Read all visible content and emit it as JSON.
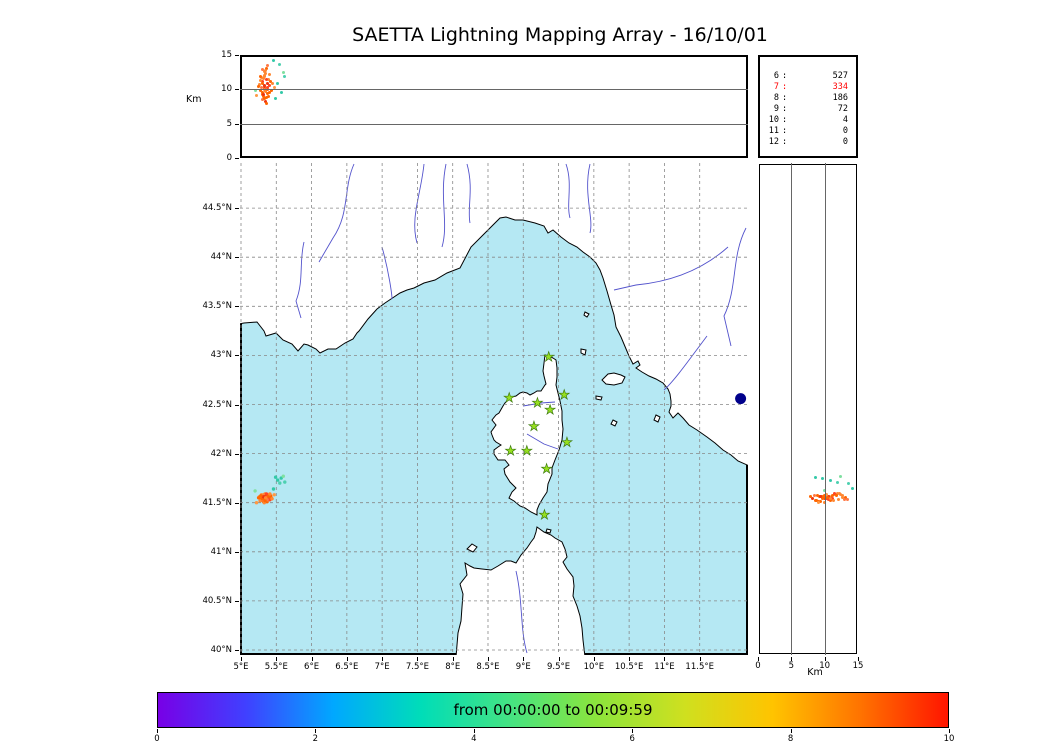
{
  "title": "SAETTA Lightning Mapping Array - 16/10/01",
  "colors": {
    "sea": "#b5e8f3",
    "land": "#ffffff",
    "coast": "#000000",
    "river": "#5353cc",
    "grid": "#888888",
    "station_fill": "#97e01f",
    "station_edge": "#3f7d10",
    "special": "#00008b",
    "highlight": "#ff0000"
  },
  "alt_lon_panel": {
    "axis_label": "Km",
    "yticks": [
      {
        "v": 15,
        "label": "15"
      },
      {
        "v": 10,
        "label": "10"
      },
      {
        "v": 5,
        "label": "5"
      },
      {
        "v": 0,
        "label": "0"
      }
    ],
    "grid": [
      5,
      10
    ]
  },
  "stats_panel": {
    "rows": [
      {
        "n": "6",
        "count": "527",
        "highlight": false
      },
      {
        "n": "7",
        "count": "334",
        "highlight": true
      },
      {
        "n": "8",
        "count": "186",
        "highlight": false
      },
      {
        "n": "9",
        "count": "72",
        "highlight": false
      },
      {
        "n": "10",
        "count": "4",
        "highlight": false
      },
      {
        "n": "11",
        "count": "0",
        "highlight": false
      },
      {
        "n": "12",
        "count": "0",
        "highlight": false
      }
    ]
  },
  "map_panel": {
    "lat_ticks": [
      {
        "v": 44.5,
        "label": "44.5°N"
      },
      {
        "v": 44,
        "label": "44°N"
      },
      {
        "v": 43.5,
        "label": "43.5°N"
      },
      {
        "v": 43,
        "label": "43°N"
      },
      {
        "v": 42.5,
        "label": "42.5°N"
      },
      {
        "v": 42,
        "label": "42°N"
      },
      {
        "v": 41.5,
        "label": "41.5°N"
      },
      {
        "v": 41,
        "label": "41°N"
      },
      {
        "v": 40.5,
        "label": "40.5°N"
      },
      {
        "v": 40,
        "label": "40°N"
      }
    ],
    "lon_ticks": [
      {
        "v": 5,
        "label": "5°E"
      },
      {
        "v": 5.5,
        "label": "5.5°E"
      },
      {
        "v": 6,
        "label": "6°E"
      },
      {
        "v": 6.5,
        "label": "6.5°E"
      },
      {
        "v": 7,
        "label": "7°E"
      },
      {
        "v": 7.5,
        "label": "7.5°E"
      },
      {
        "v": 8,
        "label": "8°E"
      },
      {
        "v": 8.5,
        "label": "8.5°E"
      },
      {
        "v": 9,
        "label": "9°E"
      },
      {
        "v": 9.5,
        "label": "9.5°E"
      },
      {
        "v": 10,
        "label": "10°E"
      },
      {
        "v": 10.5,
        "label": "10.5°E"
      },
      {
        "v": 11,
        "label": "11°E"
      },
      {
        "v": 11.5,
        "label": "11.5°E"
      }
    ]
  },
  "alt_lat_panel": {
    "axis_label": "Km",
    "xticks": [
      {
        "v": 0,
        "label": "0"
      },
      {
        "v": 5,
        "label": "5"
      },
      {
        "v": 10,
        "label": "10"
      },
      {
        "v": 15,
        "label": "15"
      }
    ],
    "grid": [
      5,
      10
    ]
  },
  "colorbar": {
    "label": "from 00:00:00 to 00:09:59",
    "ticks": [
      "0",
      "2",
      "4",
      "6",
      "8",
      "10"
    ],
    "gradient": [
      "#7800e6",
      "#4040ff",
      "#00a8ff",
      "#00ddb8",
      "#44e383",
      "#8ce43c",
      "#cfe01f",
      "#ffc400",
      "#ff7300",
      "#ff1500"
    ]
  },
  "chart_data": {
    "type": "scatter",
    "title": "SAETTA Lightning Mapping Array - 16/10/01",
    "time_window": "from 00:00:00 to 00:09:59",
    "map_lon_range": [
      5,
      12.2
    ],
    "map_lat_range": [
      39.95,
      44.96
    ],
    "altitude_km_range": [
      0,
      15
    ],
    "colorbar_range": [
      0,
      10
    ],
    "station_source_counts": [
      [
        6,
        527
      ],
      [
        7,
        334
      ],
      [
        8,
        186
      ],
      [
        9,
        72
      ],
      [
        10,
        4
      ],
      [
        11,
        0
      ],
      [
        12,
        0
      ]
    ],
    "stations": [
      [
        9.36,
        42.99
      ],
      [
        8.8,
        42.57
      ],
      [
        9.2,
        42.52
      ],
      [
        9.58,
        42.6
      ],
      [
        9.38,
        42.45
      ],
      [
        9.15,
        42.28
      ],
      [
        9.62,
        42.12
      ],
      [
        8.82,
        42.03
      ],
      [
        9.05,
        42.03
      ],
      [
        9.33,
        41.85
      ],
      [
        9.3,
        41.38
      ]
    ],
    "special_point": [
      12.08,
      42.56
    ],
    "sources": [
      [
        5.33,
        41.55,
        10.4,
        "#ff6600"
      ],
      [
        5.35,
        41.56,
        9.7,
        "#ff8833"
      ],
      [
        5.31,
        41.54,
        11.2,
        "#ff4422"
      ],
      [
        5.37,
        41.57,
        10.0,
        "#ff6600"
      ],
      [
        5.34,
        41.53,
        12.0,
        "#ff8833"
      ],
      [
        5.3,
        41.56,
        9.2,
        "#ff6600"
      ],
      [
        5.38,
        41.55,
        10.8,
        "#ee3311"
      ],
      [
        5.32,
        41.58,
        11.6,
        "#ff8833"
      ],
      [
        5.36,
        41.52,
        8.8,
        "#ff6600"
      ],
      [
        5.29,
        41.55,
        10.2,
        "#ff7744"
      ],
      [
        5.4,
        41.56,
        9.5,
        "#ff6600"
      ],
      [
        5.33,
        41.57,
        12.6,
        "#ff8833"
      ],
      [
        5.35,
        41.54,
        8.2,
        "#ee3311"
      ],
      [
        5.31,
        41.52,
        10.9,
        "#ff6600"
      ],
      [
        5.39,
        41.58,
        11.4,
        "#ff8833"
      ],
      [
        5.28,
        41.54,
        9.9,
        "#ff6600"
      ],
      [
        5.41,
        41.53,
        10.5,
        "#ff4422"
      ],
      [
        5.34,
        41.59,
        11.9,
        "#ff8833"
      ],
      [
        5.36,
        41.55,
        13.1,
        "#ff6600"
      ],
      [
        5.3,
        41.57,
        8.5,
        "#ff7744"
      ],
      [
        5.37,
        41.51,
        9.4,
        "#ff6600"
      ],
      [
        5.33,
        41.54,
        10.1,
        "#ee3311"
      ],
      [
        5.26,
        41.56,
        10.7,
        "#ff8833"
      ],
      [
        5.42,
        41.57,
        11.1,
        "#ff6600"
      ],
      [
        5.35,
        41.58,
        12.3,
        "#ff8833"
      ],
      [
        5.32,
        41.51,
        9.0,
        "#ff6600"
      ],
      [
        5.38,
        41.54,
        10.3,
        "#ff4422"
      ],
      [
        5.29,
        41.58,
        11.7,
        "#ff8833"
      ],
      [
        5.36,
        41.56,
        7.9,
        "#ff6600"
      ],
      [
        5.31,
        41.53,
        12.9,
        "#ff7744"
      ],
      [
        5.43,
        41.55,
        9.8,
        "#ff6600"
      ],
      [
        5.34,
        41.56,
        10.6,
        "#ee3311"
      ],
      [
        5.27,
        41.52,
        11.3,
        "#ff8833"
      ],
      [
        5.39,
        41.57,
        8.9,
        "#ff6600"
      ],
      [
        5.33,
        41.5,
        10.0,
        "#ff8833"
      ],
      [
        5.36,
        41.59,
        11.5,
        "#ff4422"
      ],
      [
        5.3,
        41.54,
        9.6,
        "#ff6600"
      ],
      [
        5.41,
        41.59,
        12.2,
        "#ff8833"
      ],
      [
        5.25,
        41.55,
        10.4,
        "#ff6600"
      ],
      [
        5.37,
        41.53,
        13.4,
        "#ff7744"
      ],
      [
        5.34,
        41.52,
        8.6,
        "#ff6600"
      ],
      [
        5.32,
        41.56,
        9.3,
        "#ee3311"
      ],
      [
        5.44,
        41.54,
        10.9,
        "#ff8833"
      ],
      [
        5.28,
        41.57,
        11.8,
        "#ff6600"
      ],
      [
        5.35,
        41.55,
        12.7,
        "#ff8833"
      ],
      [
        5.22,
        41.5,
        9.1,
        "#ff9944"
      ],
      [
        5.47,
        41.58,
        10.2,
        "#ff9944"
      ],
      [
        5.52,
        41.73,
        10.8,
        "#33c9a8"
      ],
      [
        5.57,
        41.75,
        9.6,
        "#33c9a8"
      ],
      [
        5.62,
        41.71,
        11.9,
        "#4dd0b0"
      ],
      [
        5.49,
        41.76,
        8.6,
        "#33c9a8"
      ],
      [
        5.55,
        41.7,
        13.6,
        "#4dd0b0"
      ],
      [
        5.6,
        41.77,
        12.4,
        "#7fe0a0"
      ],
      [
        5.2,
        41.62,
        9.9,
        "#7fe0a0"
      ],
      [
        5.46,
        41.64,
        14.2,
        "#33c9a8"
      ]
    ]
  }
}
